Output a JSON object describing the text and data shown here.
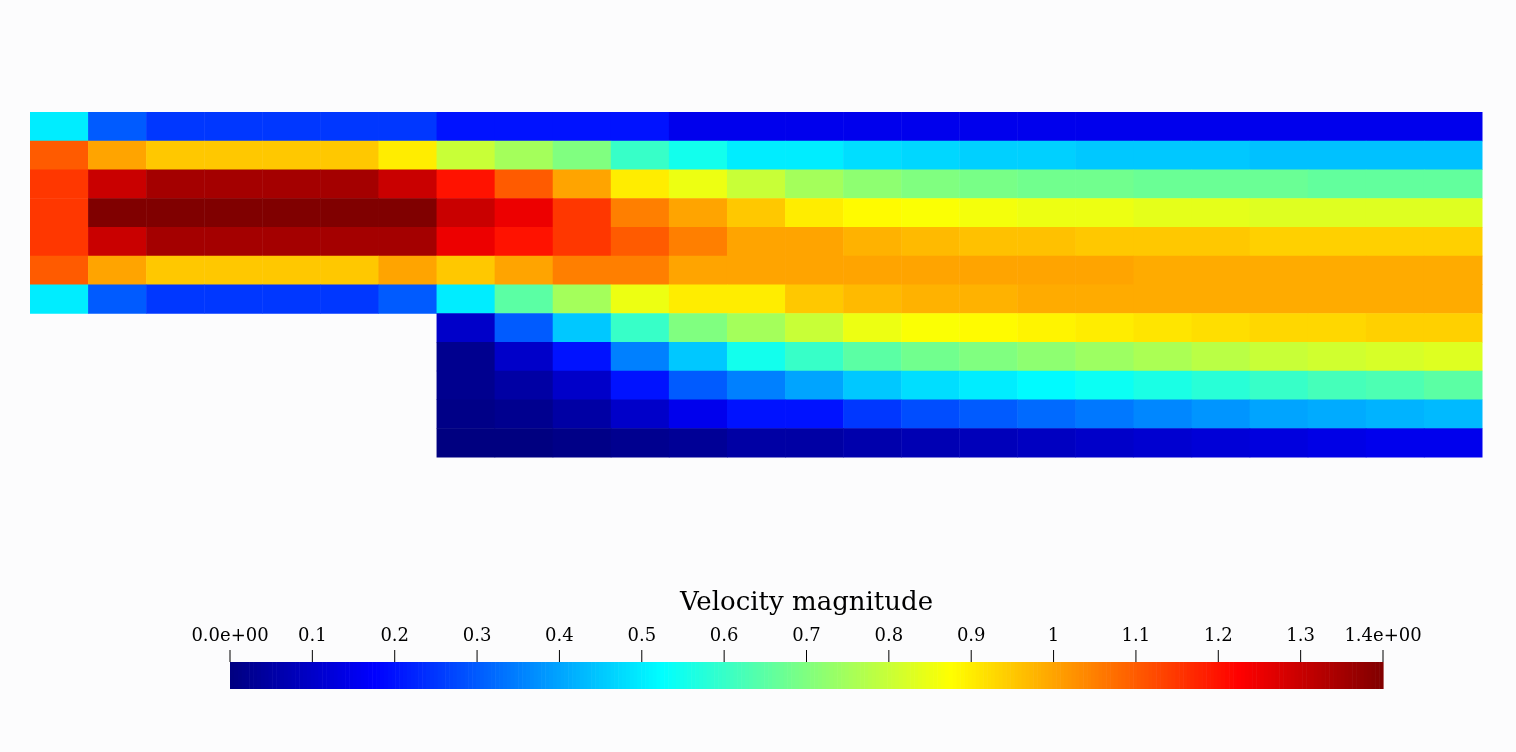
{
  "chart_data": {
    "type": "heatmap",
    "clabel": "Velocity magnitude",
    "tick_labels": false,
    "categories": [
      null,
      null,
      null,
      null,
      null,
      null,
      null,
      null,
      null,
      null,
      null,
      null,
      null,
      null,
      null,
      null,
      null,
      null,
      null,
      null,
      null,
      null,
      null,
      null,
      null
    ],
    "y_categories": [
      null,
      null,
      null,
      null,
      null,
      null,
      null,
      null,
      null,
      null,
      null,
      null
    ],
    "cells": [
      [
        0.5,
        0.3,
        0.25,
        0.25,
        0.25,
        0.25,
        0.25,
        0.2,
        0.2,
        0.2,
        0.2,
        0.15,
        0.15,
        0.15,
        0.15,
        0.15,
        0.15,
        0.15,
        0.15,
        0.15,
        0.15,
        0.15,
        0.15,
        0.15,
        0.15
      ],
      [
        1.1,
        1.0,
        0.95,
        0.95,
        0.95,
        0.95,
        0.9,
        0.8,
        0.75,
        0.7,
        0.6,
        0.55,
        0.5,
        0.5,
        0.48,
        0.47,
        0.46,
        0.46,
        0.45,
        0.45,
        0.45,
        0.44,
        0.44,
        0.44,
        0.44
      ],
      [
        1.15,
        1.3,
        1.35,
        1.35,
        1.35,
        1.35,
        1.3,
        1.2,
        1.1,
        1.0,
        0.9,
        0.85,
        0.8,
        0.75,
        0.72,
        0.7,
        0.69,
        0.68,
        0.68,
        0.67,
        0.67,
        0.67,
        0.66,
        0.66,
        0.66
      ],
      [
        1.15,
        1.4,
        1.4,
        1.4,
        1.4,
        1.4,
        1.4,
        1.3,
        1.25,
        1.15,
        1.05,
        1.0,
        0.95,
        0.9,
        0.88,
        0.87,
        0.86,
        0.85,
        0.85,
        0.84,
        0.84,
        0.83,
        0.83,
        0.83,
        0.83
      ],
      [
        1.15,
        1.3,
        1.35,
        1.35,
        1.35,
        1.35,
        1.35,
        1.25,
        1.2,
        1.15,
        1.1,
        1.05,
        1.0,
        1.0,
        0.98,
        0.97,
        0.96,
        0.96,
        0.95,
        0.95,
        0.95,
        0.94,
        0.94,
        0.94,
        0.94
      ],
      [
        1.1,
        1.0,
        0.95,
        0.95,
        0.95,
        0.95,
        1.0,
        0.95,
        1.0,
        1.05,
        1.05,
        1.0,
        1.0,
        1.0,
        1.0,
        1.0,
        1.0,
        1.0,
        1.0,
        0.99,
        0.99,
        0.99,
        0.99,
        0.99,
        0.99
      ],
      [
        0.5,
        0.3,
        0.25,
        0.25,
        0.25,
        0.25,
        0.3,
        0.5,
        0.65,
        0.75,
        0.85,
        0.9,
        0.9,
        0.95,
        0.97,
        0.98,
        0.98,
        0.99,
        0.99,
        0.99,
        0.99,
        0.99,
        0.99,
        0.99,
        0.99
      ],
      [
        null,
        null,
        null,
        null,
        null,
        null,
        null,
        0.1,
        0.3,
        0.45,
        0.6,
        0.7,
        0.75,
        0.8,
        0.85,
        0.87,
        0.88,
        0.89,
        0.9,
        0.91,
        0.92,
        0.93,
        0.93,
        0.94,
        0.94
      ],
      [
        null,
        null,
        null,
        null,
        null,
        null,
        null,
        0.02,
        0.1,
        0.2,
        0.35,
        0.45,
        0.55,
        0.6,
        0.65,
        0.68,
        0.7,
        0.72,
        0.74,
        0.76,
        0.78,
        0.8,
        0.81,
        0.82,
        0.83
      ],
      [
        null,
        null,
        null,
        null,
        null,
        null,
        null,
        0.02,
        0.05,
        0.1,
        0.2,
        0.3,
        0.35,
        0.4,
        0.45,
        0.48,
        0.5,
        0.52,
        0.54,
        0.56,
        0.58,
        0.6,
        0.62,
        0.63,
        0.65
      ],
      [
        null,
        null,
        null,
        null,
        null,
        null,
        null,
        0.01,
        0.02,
        0.05,
        0.1,
        0.15,
        0.2,
        0.2,
        0.25,
        0.28,
        0.3,
        0.32,
        0.34,
        0.36,
        0.38,
        0.4,
        0.41,
        0.42,
        0.43
      ],
      [
        null,
        null,
        null,
        null,
        null,
        null,
        null,
        0,
        0,
        0.01,
        0.02,
        0.03,
        0.05,
        0.05,
        0.06,
        0.07,
        0.08,
        0.09,
        0.1,
        0.11,
        0.12,
        0.13,
        0.14,
        0.15,
        0.15
      ]
    ],
    "clim": [
      0,
      1.4
    ],
    "cticks": [
      {
        "value": 0,
        "label": "0.0e+00"
      },
      0.1,
      0.2,
      0.3,
      0.4,
      0.5,
      0.6,
      0.7,
      0.8,
      0.9,
      1,
      1.1,
      1.2,
      1.3,
      {
        "value": 1.4,
        "label": "1.4e+00"
      }
    ]
  }
}
